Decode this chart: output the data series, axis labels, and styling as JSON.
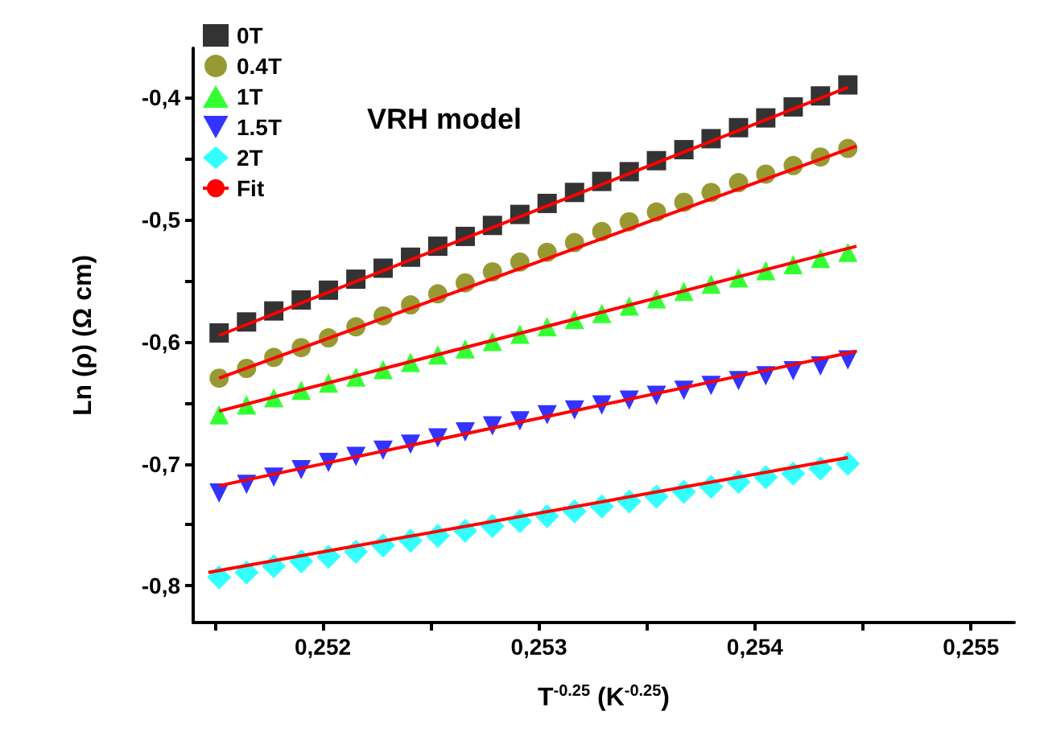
{
  "chart_data": {
    "type": "scatter",
    "xlabel": "T$^{-0.25}$ (K$^{-0.25}$)",
    "ylabel": "Ln (ρ) (Ω cm)",
    "annotations": [
      "VRH model"
    ],
    "x": [
      0.25152,
      0.251647,
      0.251773,
      0.2519,
      0.252026,
      0.252153,
      0.252279,
      0.252406,
      0.252532,
      0.252659,
      0.252785,
      0.252912,
      0.253038,
      0.253165,
      0.253291,
      0.253418,
      0.253544,
      0.253671,
      0.253797,
      0.253924,
      0.25405,
      0.254177,
      0.254303,
      0.25443
    ],
    "series": [
      {
        "name": "0T",
        "color": "#000000",
        "marker": "square",
        "values": [
          -0.593,
          -0.584,
          -0.575,
          -0.566,
          -0.558,
          -0.549,
          -0.54,
          -0.531,
          -0.522,
          -0.514,
          -0.505,
          -0.496,
          -0.487,
          -0.478,
          -0.469,
          -0.461,
          -0.452,
          -0.443,
          -0.434,
          -0.425,
          -0.417,
          -0.408,
          -0.399,
          -0.39
        ]
      },
      {
        "name": "0.4T",
        "color": "#808000",
        "marker": "circle",
        "values": [
          -0.63,
          -0.622,
          -0.613,
          -0.605,
          -0.597,
          -0.588,
          -0.579,
          -0.57,
          -0.561,
          -0.552,
          -0.543,
          -0.535,
          -0.527,
          -0.519,
          -0.51,
          -0.502,
          -0.494,
          -0.486,
          -0.478,
          -0.47,
          -0.463,
          -0.456,
          -0.449,
          -0.442
        ]
      },
      {
        "name": "1T",
        "color": "#00ff00",
        "marker": "triangle",
        "values": [
          -0.66,
          -0.652,
          -0.646,
          -0.64,
          -0.634,
          -0.629,
          -0.623,
          -0.617,
          -0.611,
          -0.606,
          -0.6,
          -0.594,
          -0.588,
          -0.582,
          -0.577,
          -0.571,
          -0.565,
          -0.559,
          -0.553,
          -0.548,
          -0.542,
          -0.537,
          -0.532,
          -0.527
        ]
      },
      {
        "name": "1.5T",
        "color": "#0000ff",
        "marker": "triangle-down",
        "values": [
          -0.724,
          -0.717,
          -0.711,
          -0.705,
          -0.699,
          -0.694,
          -0.689,
          -0.684,
          -0.679,
          -0.674,
          -0.669,
          -0.665,
          -0.66,
          -0.656,
          -0.652,
          -0.648,
          -0.644,
          -0.64,
          -0.636,
          -0.632,
          -0.628,
          -0.624,
          -0.62,
          -0.615
        ]
      },
      {
        "name": "2T",
        "color": "#00ffff",
        "marker": "diamond",
        "values": [
          -0.793,
          -0.789,
          -0.784,
          -0.78,
          -0.776,
          -0.772,
          -0.767,
          -0.763,
          -0.759,
          -0.755,
          -0.751,
          -0.747,
          -0.743,
          -0.739,
          -0.735,
          -0.731,
          -0.727,
          -0.723,
          -0.719,
          -0.715,
          -0.711,
          -0.708,
          -0.704,
          -0.7
        ]
      },
      {
        "name": "Fit",
        "type": "line",
        "color": "#ff0000",
        "marker": "none",
        "line_style": "solid",
        "x": [
          0.25152,
          0.25443
        ],
        "values": [
          -0.595,
          -0.392
        ]
      },
      {
        "type": "line",
        "color": "#ff0000",
        "marker": "none",
        "line_style": "solid",
        "x": [
          0.25152,
          0.25447
        ],
        "values": [
          -0.63,
          -0.44
        ]
      },
      {
        "type": "line",
        "color": "#ff0000",
        "marker": "none",
        "line_style": "solid",
        "x": [
          0.25152,
          0.25447
        ],
        "values": [
          -0.657,
          -0.522
        ]
      },
      {
        "type": "line",
        "color": "#ff0000",
        "marker": "none",
        "line_style": "solid",
        "x": [
          0.25152,
          0.25447
        ],
        "values": [
          -0.718,
          -0.608
        ]
      },
      {
        "type": "line",
        "color": "#ff0000",
        "marker": "none",
        "line_style": "solid",
        "x": [
          0.25147,
          0.25443
        ],
        "values": [
          -0.789,
          -0.695
        ]
      }
    ],
    "xlim": [
      0.2514,
      0.2552
    ],
    "xticks": [
      {
        "value": 0.2515,
        "label": null
      },
      {
        "value": 0.252,
        "label": "0,252"
      },
      {
        "value": 0.2525,
        "label": null
      },
      {
        "value": 0.253,
        "label": "0,253"
      },
      {
        "value": 0.2535,
        "label": null
      },
      {
        "value": 0.254,
        "label": "0,254"
      },
      {
        "value": 0.2545,
        "label": null
      },
      {
        "value": 0.255,
        "label": "0,255"
      }
    ],
    "ylim": [
      -0.83,
      -0.36
    ],
    "yticks": [
      {
        "value": -0.8,
        "label": "-0,8"
      },
      {
        "value": -0.75,
        "label": null
      },
      {
        "value": -0.7,
        "label": "-0,7"
      },
      {
        "value": -0.65,
        "label": null
      },
      {
        "value": -0.6,
        "label": "-0,6"
      },
      {
        "value": -0.55,
        "label": null
      },
      {
        "value": -0.5,
        "label": "-0,5"
      },
      {
        "value": -0.45,
        "label": null
      },
      {
        "value": -0.4,
        "label": "-0,4"
      }
    ],
    "legend": "top left",
    "grid": false
  }
}
